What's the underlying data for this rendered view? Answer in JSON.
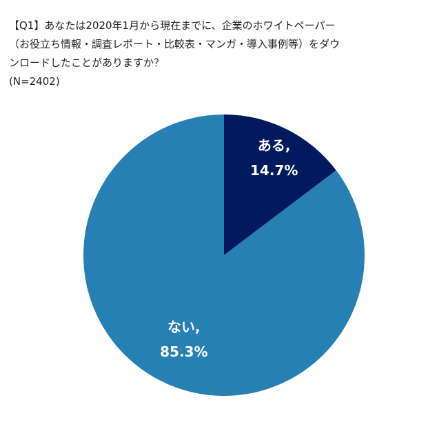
{
  "question": {
    "line1": "【Q1】あなたは2020年1月から現在までに、企業のホワイトペーパー",
    "line2": "（お役立ち情報・調査レポート・比較表・マンガ・導入事例等）をダウ",
    "line3": "ンロードしたことがありますか？",
    "sample": "(N=2402)"
  },
  "chart_data": {
    "type": "pie",
    "start_angle_deg": 0,
    "direction": "clockwise",
    "slices": [
      {
        "label": "ある,",
        "value": 14.7,
        "value_label": "14.7%",
        "color": "#011a5e"
      },
      {
        "label": "ない,",
        "value": 85.3,
        "value_label": "85.3%",
        "color": "#2680b3"
      }
    ],
    "legend": "none"
  }
}
